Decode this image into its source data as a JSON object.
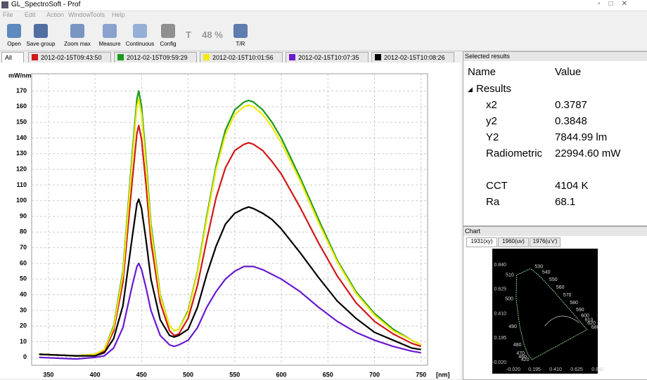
{
  "window": {
    "title": "GL_SpectroSoft - Prof"
  },
  "menu": [
    "File",
    "Edit",
    "Action",
    "Window",
    "Tools",
    "Help"
  ],
  "toolbar": [
    "Open",
    "Save group",
    "Zoom max",
    "Measure",
    "Continuous",
    "Config",
    "T",
    "48 %",
    "T/R"
  ],
  "tabs": {
    "all": "All"
  },
  "results": {
    "panel_title": "Selected results",
    "columns": [
      "Name",
      "Value"
    ],
    "group": "Results",
    "rows": [
      [
        "x2",
        "0.3787"
      ],
      [
        "y2",
        "0.3848"
      ],
      [
        "Y2",
        "7844.99 lm"
      ],
      [
        "Radiometric",
        "22994.60 mW"
      ],
      [
        "CCT",
        "4104 K"
      ],
      [
        "Ra",
        "68.1"
      ]
    ]
  },
  "cie": {
    "panel_title": "Chart",
    "tabs": [
      "1931(xy)",
      "1960(uv)",
      "1976(u'v')"
    ],
    "xtick_labels": [
      "-0.020",
      "0.195",
      "0.410",
      "0.625",
      "0.840"
    ],
    "ytick_labels": [
      "0.840",
      "0.625",
      "0.410",
      "0.195",
      "-0.020"
    ],
    "locus_labels": [
      "420",
      "460",
      "470",
      "480",
      "490",
      "500",
      "510",
      "530",
      "540",
      "550",
      "560",
      "570",
      "580",
      "590",
      "600",
      "610",
      "620",
      "680"
    ]
  },
  "chart_data": {
    "type": "line",
    "ylabel": "mW/nm",
    "xlabel": "[nm]",
    "x": [
      340,
      380,
      400,
      410,
      420,
      430,
      440,
      445,
      447,
      450,
      455,
      460,
      470,
      480,
      485,
      490,
      500,
      510,
      520,
      530,
      540,
      550,
      560,
      565,
      570,
      580,
      590,
      600,
      620,
      640,
      660,
      680,
      700,
      720,
      740,
      750
    ],
    "series": [
      {
        "name": "2012-02-15T09:43:50",
        "color": "#d01818",
        "values": [
          2,
          1,
          2,
          4,
          17,
          48,
          113,
          143,
          148,
          139,
          109,
          74,
          35,
          17,
          14,
          15,
          25,
          46,
          75,
          102,
          121,
          132,
          136,
          137,
          136,
          132,
          125,
          117,
          96,
          73,
          52,
          35,
          23,
          15,
          9,
          7
        ]
      },
      {
        "name": "2012-02-15T09:59:29",
        "color": "#1a9a1a",
        "values": [
          2,
          1,
          2,
          5,
          20,
          55,
          130,
          165,
          170,
          160,
          125,
          85,
          40,
          20,
          17,
          18,
          30,
          55,
          90,
          122,
          145,
          158,
          163,
          164,
          163,
          158,
          150,
          140,
          115,
          88,
          62,
          42,
          28,
          18,
          11,
          8
        ]
      },
      {
        "name": "2012-02-15T10:01:56",
        "color": "#f2ea10",
        "values": [
          2,
          1,
          2,
          5,
          19,
          53,
          126,
          160,
          165,
          155,
          121,
          82,
          39,
          20,
          17,
          18,
          29,
          54,
          88,
          120,
          142,
          155,
          160,
          161,
          160,
          155,
          147,
          137,
          113,
          86,
          61,
          41,
          27,
          17,
          11,
          8
        ]
      },
      {
        "name": "2012-02-15T10:07:35",
        "color": "#6a1ad0",
        "values": [
          0,
          -1,
          0,
          1,
          6,
          19,
          46,
          58,
          60,
          56,
          44,
          30,
          14,
          8,
          7,
          8,
          11,
          19,
          32,
          42,
          50,
          55,
          58,
          58,
          58,
          56,
          53,
          50,
          42,
          32,
          23,
          16,
          11,
          7,
          4,
          3
        ]
      },
      {
        "name": "2012-02-15T10:08:26",
        "color": "#000000",
        "values": [
          2,
          1,
          1,
          3,
          12,
          33,
          77,
          98,
          101,
          95,
          74,
          50,
          24,
          14,
          13,
          14,
          18,
          32,
          53,
          71,
          85,
          92,
          95,
          96,
          95,
          92,
          88,
          82,
          67,
          51,
          36,
          25,
          16,
          11,
          6,
          5
        ]
      }
    ],
    "xlim": [
      332,
      757
    ],
    "ylim": [
      -5,
      181
    ],
    "xticks": [
      350,
      400,
      450,
      500,
      550,
      600,
      650,
      700,
      750
    ],
    "yticks": [
      0,
      10,
      20,
      30,
      40,
      50,
      60,
      70,
      80,
      90,
      100,
      110,
      120,
      130,
      140,
      150,
      160,
      170
    ],
    "grid": true
  }
}
